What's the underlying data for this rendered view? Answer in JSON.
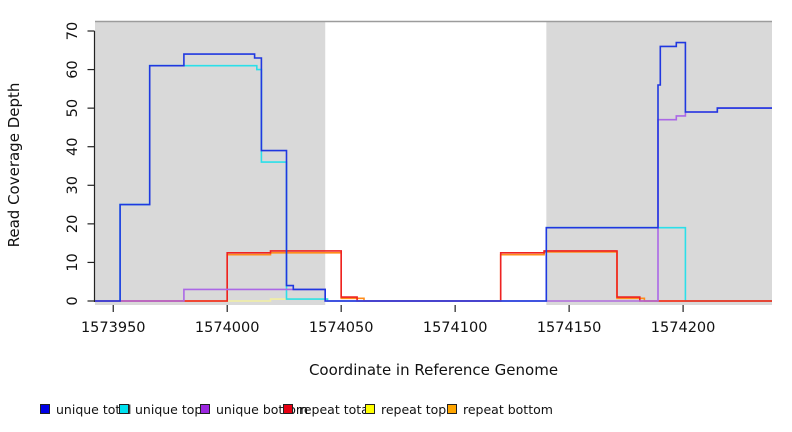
{
  "axes": {
    "x_label": "Coordinate in Reference Genome",
    "y_label": "Read Coverage Depth",
    "x_ticks": [
      1573950,
      1574000,
      1574050,
      1574100,
      1574150,
      1574200
    ],
    "y_ticks": [
      0,
      10,
      20,
      30,
      40,
      50,
      60,
      70
    ]
  },
  "chart_data": {
    "type": "line",
    "subtype": "step",
    "title": "",
    "xlabel": "Coordinate in Reference Genome",
    "ylabel": "Read Coverage Depth",
    "x_range": [
      1573942,
      1574239
    ],
    "ylim": [
      0,
      70
    ],
    "grid": false,
    "legend_position": "bottom",
    "highlight_regions": {
      "color": "#d9d9d9",
      "edge_color": "#9c9c9c",
      "ranges": [
        [
          1573942,
          1574043
        ],
        [
          1574140,
          1574239
        ]
      ]
    },
    "series": [
      {
        "name": "repeat top",
        "line_color": "#f3efa2",
        "points": [
          [
            1573942,
            0
          ],
          [
            1574019,
            0.5
          ],
          [
            1574044,
            0
          ],
          [
            1574239,
            0
          ]
        ]
      },
      {
        "name": "unique top",
        "line_color": "#2bdfe9",
        "points": [
          [
            1573942,
            0
          ],
          [
            1573953,
            25
          ],
          [
            1573966,
            61
          ],
          [
            1574013,
            60
          ],
          [
            1574015,
            36
          ],
          [
            1574026,
            0.5
          ],
          [
            1574044,
            0
          ],
          [
            1574140,
            19
          ],
          [
            1574201,
            0
          ],
          [
            1574239,
            0
          ]
        ]
      },
      {
        "name": "repeat bottom",
        "line_color": "#ff8c1a",
        "points": [
          [
            1573942,
            0
          ],
          [
            1574000,
            12
          ],
          [
            1574019,
            12.5
          ],
          [
            1574050,
            0.7
          ],
          [
            1574060,
            0
          ],
          [
            1574120,
            12
          ],
          [
            1574139,
            12.7
          ],
          [
            1574171,
            0.7
          ],
          [
            1574183,
            0
          ],
          [
            1574239,
            0
          ]
        ]
      },
      {
        "name": "repeat total",
        "line_color": "#ee2222",
        "points": [
          [
            1573942,
            0
          ],
          [
            1574000,
            12.5
          ],
          [
            1574019,
            13
          ],
          [
            1574050,
            1
          ],
          [
            1574057,
            0
          ],
          [
            1574120,
            12.5
          ],
          [
            1574139,
            13
          ],
          [
            1574171,
            1
          ],
          [
            1574181,
            0
          ],
          [
            1574239,
            0
          ]
        ]
      },
      {
        "name": "unique bottom",
        "line_color": "#ab68e6",
        "points": [
          [
            1573942,
            0
          ],
          [
            1573981,
            3
          ],
          [
            1574043,
            0
          ],
          [
            1574189,
            47
          ],
          [
            1574197,
            48
          ],
          [
            1574201,
            49
          ],
          [
            1574215,
            50
          ],
          [
            1574239,
            50
          ]
        ]
      },
      {
        "name": "unique total",
        "line_color": "#2038e0",
        "points": [
          [
            1573942,
            0
          ],
          [
            1573953,
            25
          ],
          [
            1573966,
            61
          ],
          [
            1573981,
            64
          ],
          [
            1574012,
            63
          ],
          [
            1574015,
            39
          ],
          [
            1574026,
            4
          ],
          [
            1574029,
            3
          ],
          [
            1574043,
            0
          ],
          [
            1574140,
            19
          ],
          [
            1574189,
            56
          ],
          [
            1574190,
            66
          ],
          [
            1574197,
            67
          ],
          [
            1574201,
            49
          ],
          [
            1574215,
            50
          ],
          [
            1574239,
            50
          ]
        ]
      }
    ]
  },
  "legend": {
    "items": [
      {
        "label": "unique total",
        "color": "#0000e6"
      },
      {
        "label": "unique top",
        "color": "#00e1ef"
      },
      {
        "label": "unique bottom",
        "color": "#9c27e0"
      },
      {
        "label": "repeat total",
        "color": "#e60012"
      },
      {
        "label": "repeat top",
        "color": "#ffff00"
      },
      {
        "label": "repeat bottom",
        "color": "#ffa500"
      }
    ],
    "item_lefts": [
      40,
      119,
      200,
      283,
      365,
      447
    ]
  }
}
